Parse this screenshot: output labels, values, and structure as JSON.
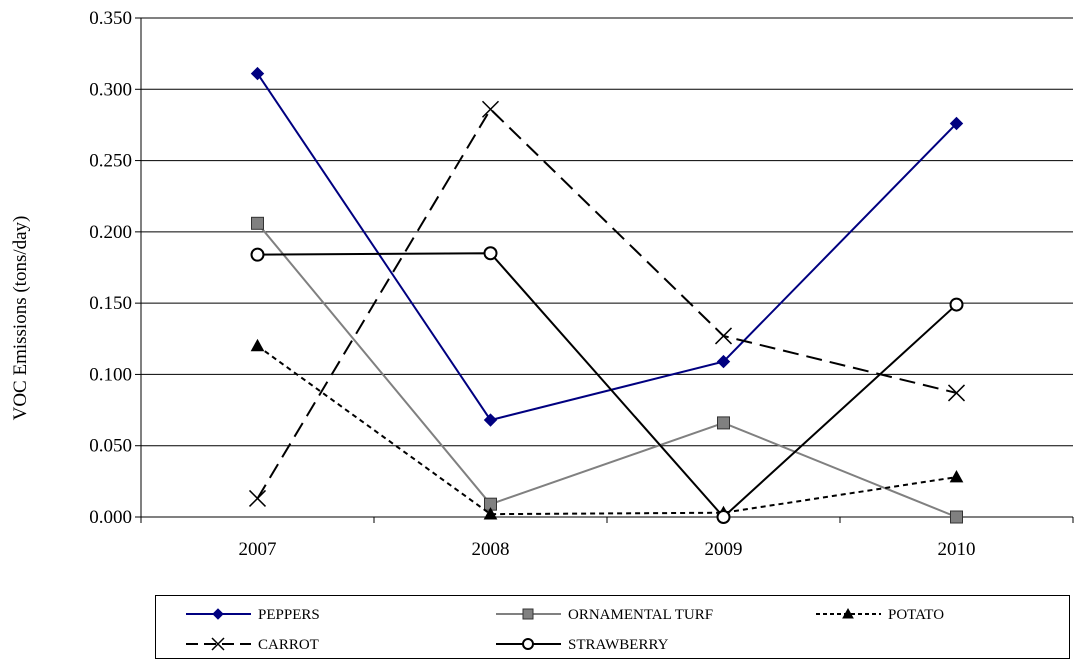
{
  "chart_data": {
    "type": "line",
    "title": "",
    "xlabel": "",
    "ylabel": "VOC Emissions (tons/day)",
    "categories": [
      "2007",
      "2008",
      "2009",
      "2010"
    ],
    "ylim": [
      0,
      0.35
    ],
    "yticks": [
      "0.000",
      "0.050",
      "0.100",
      "0.150",
      "0.200",
      "0.250",
      "0.300",
      "0.350"
    ],
    "grid": true,
    "legend_position": "bottom",
    "series": [
      {
        "name": "PEPPERS",
        "values": [
          0.311,
          0.068,
          0.109,
          0.276
        ],
        "color": "#000080",
        "dash": "solid",
        "marker": "diamond"
      },
      {
        "name": "ORNAMENTAL TURF",
        "values": [
          0.206,
          0.009,
          0.066,
          0.0
        ],
        "color": "#808080",
        "dash": "solid",
        "marker": "square"
      },
      {
        "name": "POTATO",
        "values": [
          0.12,
          0.002,
          0.003,
          0.028
        ],
        "color": "#000000",
        "dash": "dotted",
        "marker": "triangle"
      },
      {
        "name": "CARROT",
        "values": [
          0.013,
          0.286,
          0.127,
          0.087
        ],
        "color": "#000000",
        "dash": "dashed",
        "marker": "x"
      },
      {
        "name": "STRAWBERRY",
        "values": [
          0.184,
          0.185,
          0.0,
          0.149
        ],
        "color": "#000000",
        "dash": "solid",
        "marker": "circle"
      }
    ]
  }
}
